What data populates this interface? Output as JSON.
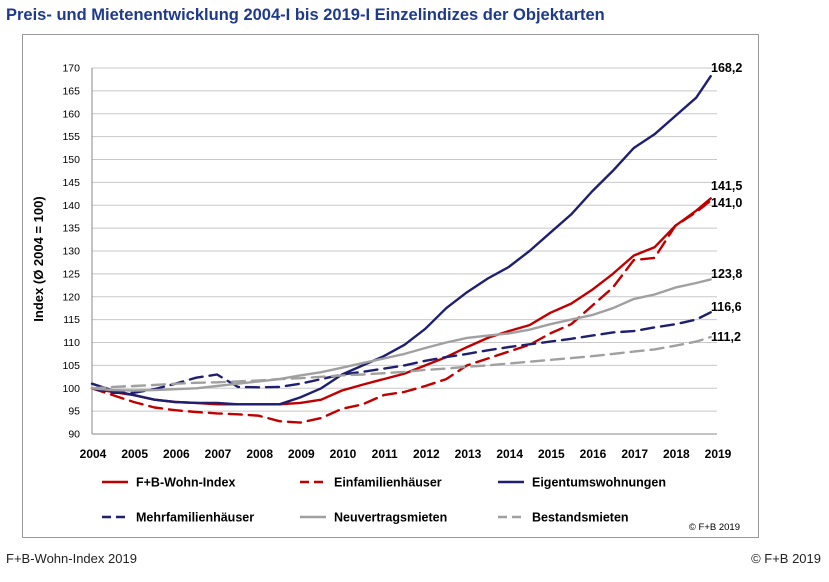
{
  "title": "Preis- und Mietenentwicklung 2004-I bis 2019-I Einzelindizes der Objektarten",
  "footer": {
    "left": "F+B-Wohn-Index 2019",
    "right": "© F+B 2019"
  },
  "chart_data": {
    "type": "line",
    "title": "Preis- und Mietenentwicklung 2004-I bis 2019-I Einzelindizes der Objektarten",
    "xlabel": "",
    "ylabel": "Index (Ø 2004 = 100)",
    "ylim": [
      90,
      170
    ],
    "yticks": [
      90,
      95,
      100,
      105,
      110,
      115,
      120,
      125,
      130,
      135,
      140,
      145,
      150,
      155,
      160,
      165,
      170
    ],
    "xlim": [
      2004,
      2019
    ],
    "xticks": [
      "2004",
      "2005",
      "2006",
      "2007",
      "2008",
      "2009",
      "2010",
      "2011",
      "2012",
      "2013",
      "2014",
      "2015",
      "2016",
      "2017",
      "2018",
      "2019"
    ],
    "grid": "horizontal",
    "legend_position": "bottom",
    "copyright": "© F+B 2019",
    "end_labels": [
      {
        "text": "168,2",
        "value": 168.2
      },
      {
        "text": "141,5",
        "value": 141.5
      },
      {
        "text": "141,0",
        "value": 141.0
      },
      {
        "text": "123,8",
        "value": 123.8
      },
      {
        "text": "116,6",
        "value": 116.6
      },
      {
        "text": "111,2",
        "value": 111.2
      }
    ],
    "series": [
      {
        "name": "F+B-Wohn-Index",
        "color": "#c00000",
        "style": "solid",
        "x": [
          2004,
          2004.5,
          2005,
          2005.5,
          2006,
          2006.5,
          2007,
          2007.5,
          2008,
          2008.5,
          2009,
          2009.5,
          2010,
          2010.5,
          2011,
          2011.5,
          2012,
          2012.5,
          2013,
          2013.5,
          2014,
          2014.5,
          2015,
          2015.5,
          2016,
          2016.5,
          2017,
          2017.5,
          2018,
          2018.5,
          2018.85
        ],
        "y": [
          100,
          99.2,
          98.5,
          97.5,
          97,
          96.8,
          96.5,
          96.5,
          96.5,
          96.5,
          96.8,
          97.5,
          99.5,
          100.8,
          102,
          103.2,
          105,
          106.8,
          109,
          111,
          112.5,
          113.8,
          116.5,
          118.5,
          121.5,
          125,
          129,
          130.8,
          135.5,
          138.8,
          141.5
        ]
      },
      {
        "name": "Einfamilienhäuser",
        "color": "#c00000",
        "style": "dashed",
        "x": [
          2004,
          2004.5,
          2005,
          2005.5,
          2006,
          2006.5,
          2007,
          2007.5,
          2008,
          2008.5,
          2009,
          2009.5,
          2010,
          2010.5,
          2011,
          2011.5,
          2012,
          2012.5,
          2013,
          2013.5,
          2014,
          2014.5,
          2015,
          2015.5,
          2016,
          2016.5,
          2017,
          2017.5,
          2018,
          2018.5,
          2018.85
        ],
        "y": [
          100,
          98.5,
          97,
          95.8,
          95.2,
          94.8,
          94.5,
          94.3,
          94,
          92.8,
          92.5,
          93.5,
          95.5,
          96.5,
          98.5,
          99.2,
          100.5,
          102,
          105,
          106.5,
          108,
          109.5,
          112,
          114,
          118,
          122,
          128,
          128.5,
          135.5,
          138.5,
          141
        ]
      },
      {
        "name": "Eigentumswohnungen",
        "color": "#1f1f70",
        "style": "solid",
        "x": [
          2004,
          2004.5,
          2005,
          2005.5,
          2006,
          2006.5,
          2007,
          2007.5,
          2008,
          2008.5,
          2009,
          2009.5,
          2010,
          2010.5,
          2011,
          2011.5,
          2012,
          2012.5,
          2013,
          2013.5,
          2014,
          2014.5,
          2015,
          2015.5,
          2016,
          2016.5,
          2017,
          2017.5,
          2018,
          2018.5,
          2018.85
        ],
        "y": [
          101,
          99.5,
          98.5,
          97.5,
          97,
          96.8,
          96.8,
          96.5,
          96.5,
          96.5,
          98,
          100,
          103,
          105,
          107,
          109.5,
          113,
          117.5,
          121,
          124,
          126.5,
          130,
          134,
          138,
          143,
          147.5,
          152.5,
          155.5,
          159.5,
          163.5,
          168.2
        ]
      },
      {
        "name": "Mehrfamilienhäuser",
        "color": "#1f1f70",
        "style": "dashed",
        "x": [
          2004,
          2004.5,
          2005,
          2005.5,
          2006,
          2006.5,
          2007,
          2007.5,
          2008,
          2008.5,
          2009,
          2009.5,
          2010,
          2010.5,
          2011,
          2011.5,
          2012,
          2012.5,
          2013,
          2013.5,
          2014,
          2014.5,
          2015,
          2015.5,
          2016,
          2016.5,
          2017,
          2017.5,
          2018,
          2018.5,
          2018.85
        ],
        "y": [
          100,
          99,
          99,
          99.8,
          101,
          102.3,
          103,
          100.3,
          100.2,
          100.3,
          101,
          102,
          103,
          103.6,
          104.3,
          105,
          106,
          106.8,
          107.5,
          108.3,
          109,
          109.6,
          110.2,
          110.8,
          111.5,
          112.2,
          112.5,
          113.3,
          114,
          115,
          116.6
        ]
      },
      {
        "name": "Neuvertragsmieten",
        "color": "#a0a0a0",
        "style": "solid",
        "x": [
          2004,
          2004.5,
          2005,
          2005.5,
          2006,
          2006.5,
          2007,
          2007.5,
          2008,
          2008.5,
          2009,
          2009.5,
          2010,
          2010.5,
          2011,
          2011.5,
          2012,
          2012.5,
          2013,
          2013.5,
          2014,
          2014.5,
          2015,
          2015.5,
          2016,
          2016.5,
          2017,
          2017.5,
          2018,
          2018.5,
          2018.85
        ],
        "y": [
          100,
          99.6,
          99.5,
          99.6,
          99.8,
          100,
          100.5,
          101,
          101.5,
          102,
          102.8,
          103.5,
          104.5,
          105.5,
          106.5,
          107.5,
          108.8,
          110,
          111,
          111.5,
          112,
          112.8,
          114,
          115,
          116,
          117.5,
          119.5,
          120.5,
          122,
          123,
          123.8
        ]
      },
      {
        "name": "Bestandsmieten",
        "color": "#a0a0a0",
        "style": "dashed",
        "x": [
          2004,
          2004.5,
          2005,
          2005.5,
          2006,
          2006.5,
          2007,
          2007.5,
          2008,
          2008.5,
          2009,
          2009.5,
          2010,
          2010.5,
          2011,
          2011.5,
          2012,
          2012.5,
          2013,
          2013.5,
          2014,
          2014.5,
          2015,
          2015.5,
          2016,
          2016.5,
          2017,
          2017.5,
          2018,
          2018.5,
          2018.85
        ],
        "y": [
          100,
          100.3,
          100.5,
          100.7,
          101,
          101.2,
          101.3,
          101.5,
          101.7,
          102,
          102.2,
          102.5,
          102.8,
          103,
          103.3,
          103.6,
          104,
          104.3,
          104.7,
          105,
          105.4,
          105.8,
          106.2,
          106.6,
          107,
          107.5,
          108,
          108.5,
          109.3,
          110.2,
          111.2
        ]
      }
    ]
  }
}
